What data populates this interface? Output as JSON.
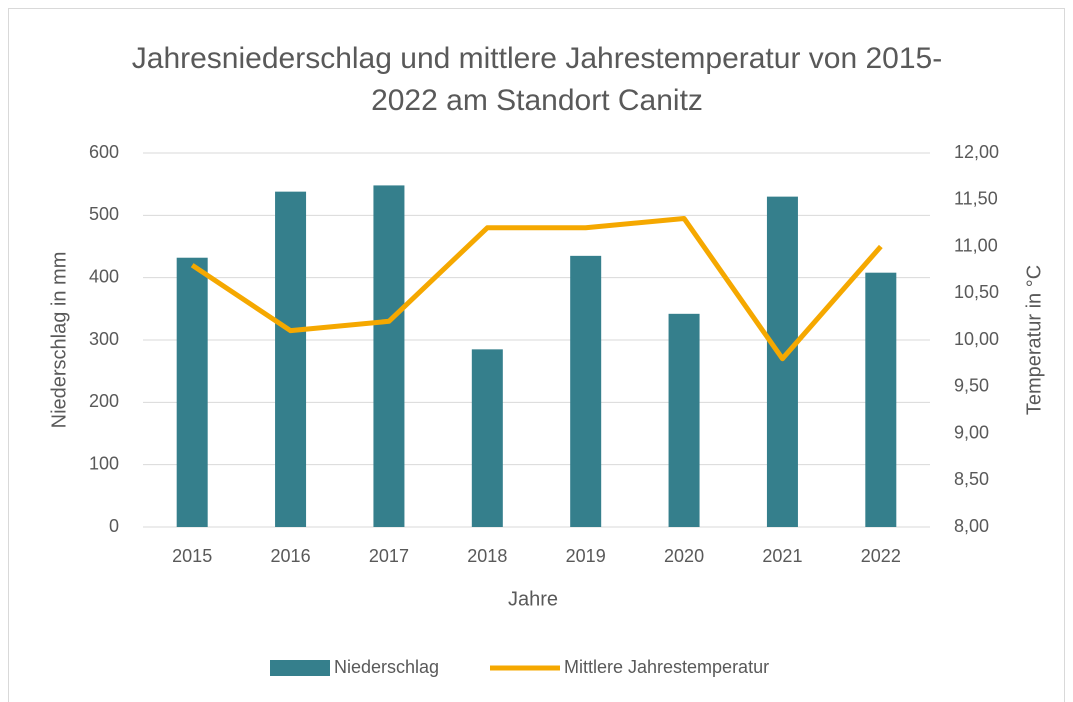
{
  "chart_data": {
    "type": "bar",
    "title": "Jahresniederschlag und mittlere Jahrestemperatur von 2015-2022 am Standort Canitz",
    "x_label": "Jahre",
    "y_label": "Niederschlag in mm",
    "y2_label": "Temperatur in °C",
    "categories": [
      "2015",
      "2016",
      "2017",
      "2018",
      "2019",
      "2020",
      "2021",
      "2022"
    ],
    "series": [
      {
        "name": "Niederschlag",
        "type": "bar",
        "color": "#357f8c",
        "values": [
          432,
          538,
          548,
          285,
          435,
          342,
          530,
          408
        ]
      },
      {
        "name": "Mittlere Jahrestemperatur",
        "type": "line",
        "axis": "y2",
        "color": "#f5a800",
        "values": [
          10.8,
          10.1,
          10.2,
          11.2,
          11.2,
          11.3,
          9.8,
          11.0
        ]
      }
    ],
    "ylim": [
      0,
      600
    ],
    "yticks": [
      0,
      100,
      200,
      300,
      400,
      500,
      600
    ],
    "y2lim": [
      8,
      12
    ],
    "y2ticks": [
      {
        "value": 8,
        "label": "8,00"
      },
      {
        "value": 8.5,
        "label": "8,50"
      },
      {
        "value": 9,
        "label": "9,00"
      },
      {
        "value": 9.5,
        "label": "9,50"
      },
      {
        "value": 10,
        "label": "10,00"
      },
      {
        "value": 10.5,
        "label": "10,50"
      },
      {
        "value": 11,
        "label": "11,00"
      },
      {
        "value": 11.5,
        "label": "11,50"
      },
      {
        "value": 12,
        "label": "12,00"
      }
    ],
    "grid": true,
    "legend": "bottom"
  }
}
